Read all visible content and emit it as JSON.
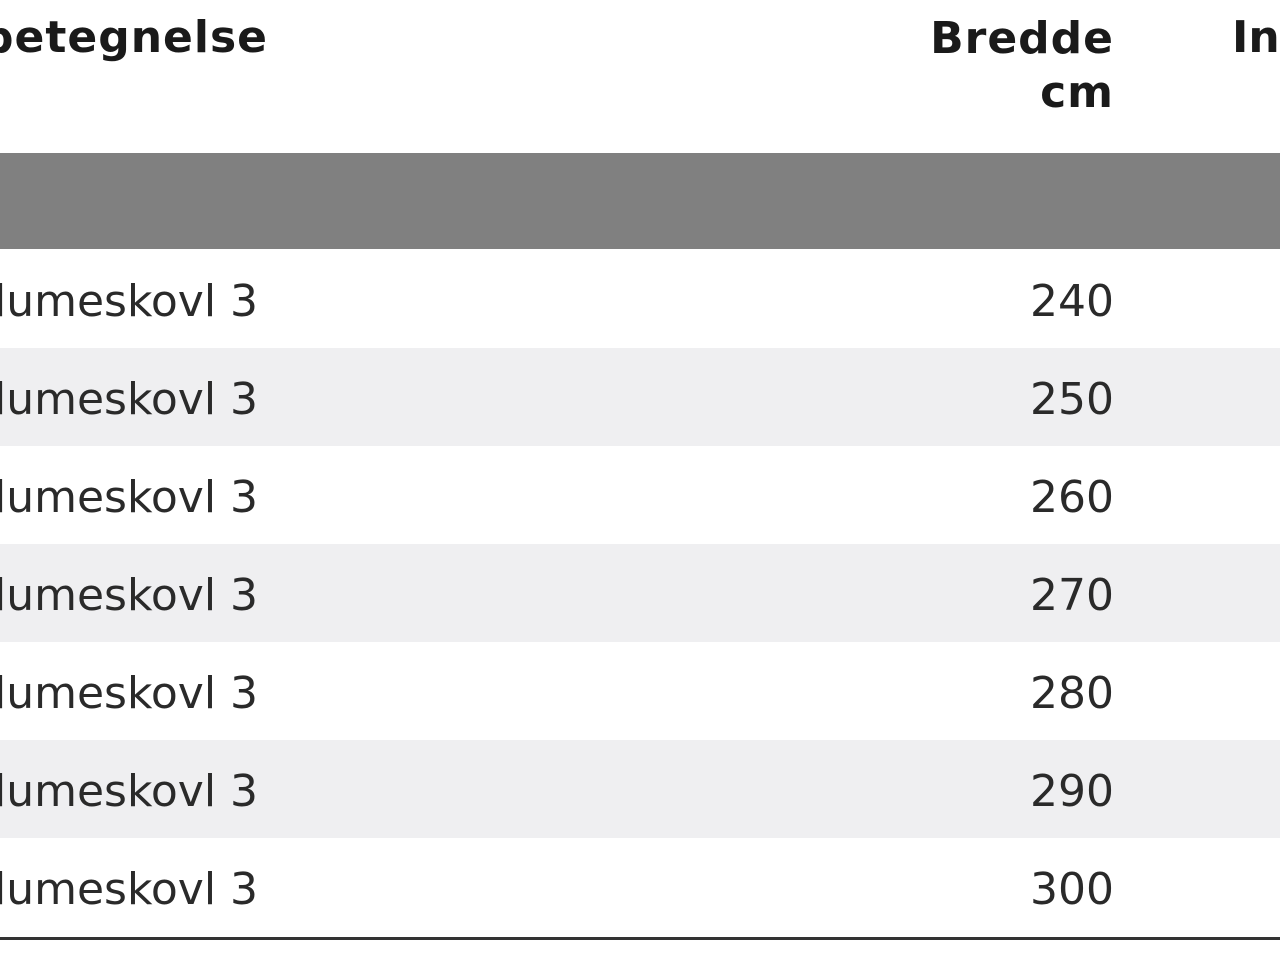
{
  "table": {
    "headers": {
      "name": "ebetegnelse",
      "width_line1": "Bredde",
      "width_line2": "cm",
      "next": "In"
    },
    "rows": [
      {
        "name": "lumeskovl 3",
        "width": "240"
      },
      {
        "name": "lumeskovl 3",
        "width": "250"
      },
      {
        "name": "lumeskovl 3",
        "width": "260"
      },
      {
        "name": "lumeskovl 3",
        "width": "270"
      },
      {
        "name": "lumeskovl 3",
        "width": "280"
      },
      {
        "name": "lumeskovl 3",
        "width": "290"
      },
      {
        "name": "lumeskovl 3",
        "width": "300"
      }
    ],
    "colors": {
      "section_band": "#808080",
      "stripe": "#efeff1"
    }
  }
}
